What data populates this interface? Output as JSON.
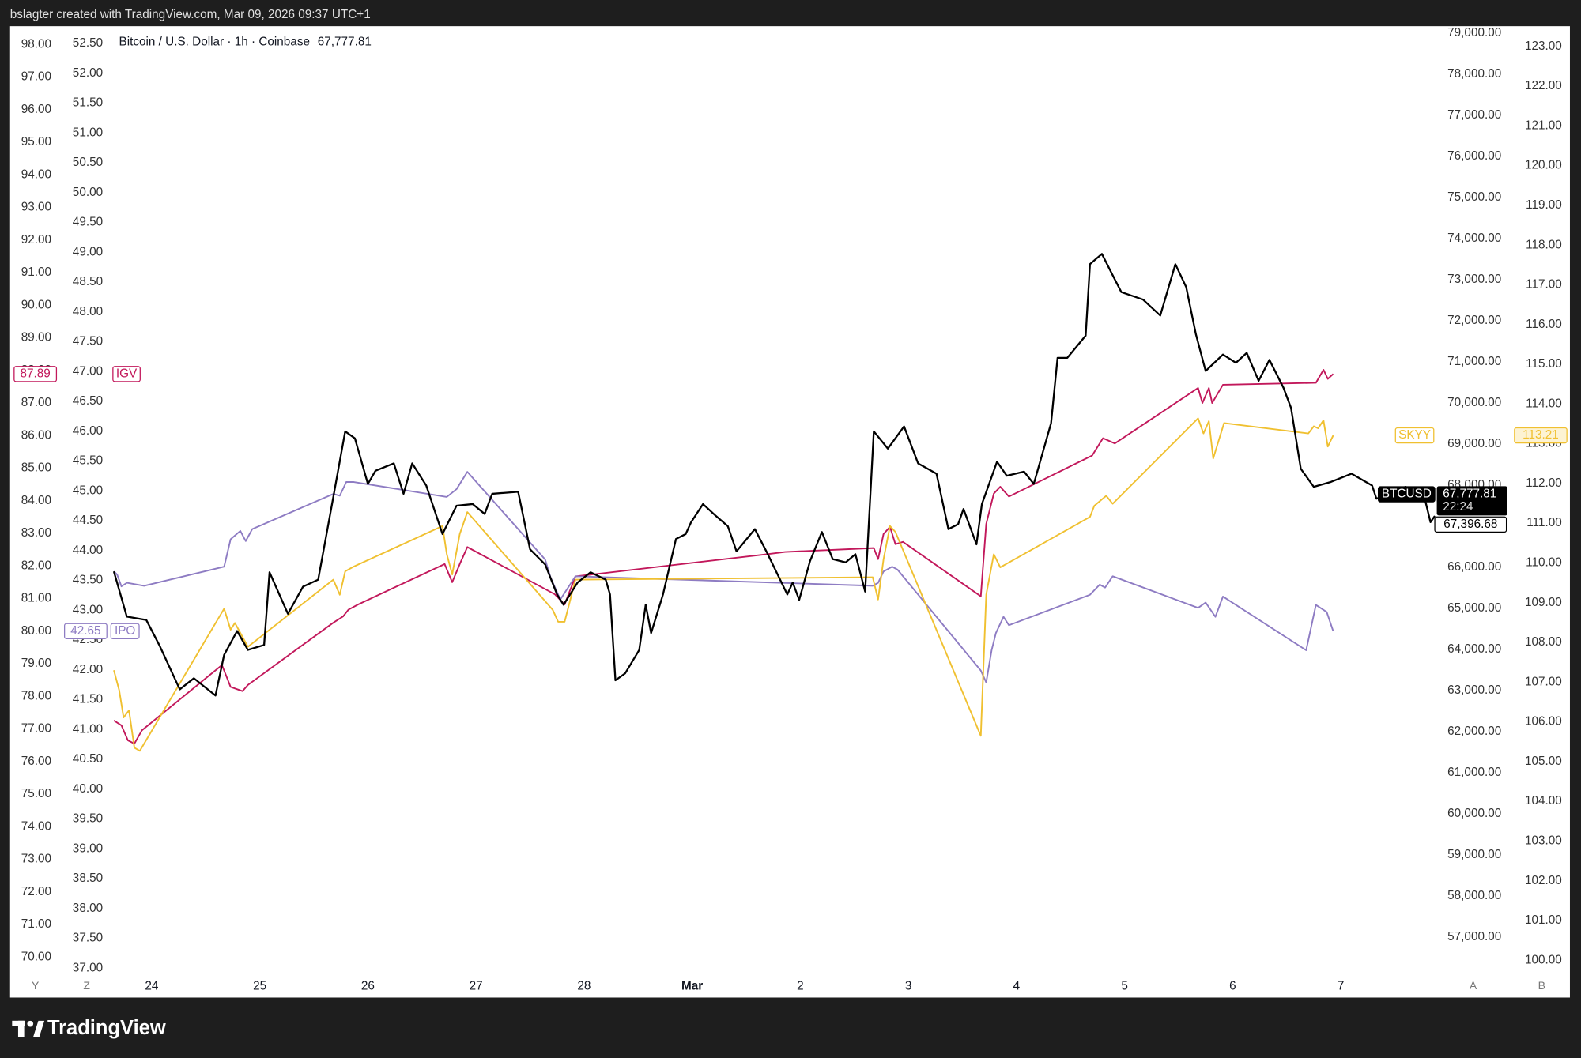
{
  "chart_data": {
    "type": "line",
    "header": "bslagter created with TradingView.com, Mar 09, 2026 09:37 UTC+1",
    "legend_title": "Bitcoin / U.S. Dollar · 1h · Coinbase",
    "legend_price": {
      "value": 67777.81,
      "label": "67,777.81"
    },
    "logo": "TradingView",
    "axis_letters": [
      "Y",
      "Z",
      "A",
      "B"
    ],
    "xlim": [
      -1.31,
      11.95
    ],
    "xticks": [
      {
        "value": 0,
        "label": "24"
      },
      {
        "value": 1,
        "label": "25"
      },
      {
        "value": 2,
        "label": "26"
      },
      {
        "value": 3,
        "label": "27"
      },
      {
        "value": 4,
        "label": "28"
      },
      {
        "value": 5,
        "label": "Mar"
      },
      {
        "value": 6,
        "label": "2"
      },
      {
        "value": 7,
        "label": "3"
      },
      {
        "value": 8,
        "label": "4"
      },
      {
        "value": 9,
        "label": "5"
      },
      {
        "value": 10,
        "label": "6"
      },
      {
        "value": 11,
        "label": "7"
      }
    ],
    "y_axes": [
      {
        "side": "left",
        "ylim": [
          69.44,
          98.56
        ],
        "yticks": [
          {
            "value": 70,
            "label": "70.00"
          },
          {
            "value": 71,
            "label": "71.00"
          },
          {
            "value": 72,
            "label": "72.00"
          },
          {
            "value": 73,
            "label": "73.00"
          },
          {
            "value": 74,
            "label": "74.00"
          },
          {
            "value": 75,
            "label": "75.00"
          },
          {
            "value": 76,
            "label": "76.00"
          },
          {
            "value": 77,
            "label": "77.00"
          },
          {
            "value": 78,
            "label": "78.00"
          },
          {
            "value": 79,
            "label": "79.00"
          },
          {
            "value": 80,
            "label": "80.00"
          },
          {
            "value": 81,
            "label": "81.00"
          },
          {
            "value": 82,
            "label": "82.00"
          },
          {
            "value": 83,
            "label": "83.00"
          },
          {
            "value": 84,
            "label": "84.00"
          },
          {
            "value": 85,
            "label": "85.00"
          },
          {
            "value": 86,
            "label": "86.00"
          },
          {
            "value": 87,
            "label": "87.00"
          },
          {
            "value": 88,
            "label": "88.00"
          },
          {
            "value": 89,
            "label": "89.00"
          },
          {
            "value": 90,
            "label": "90.00"
          },
          {
            "value": 91,
            "label": "91.00"
          },
          {
            "value": 92,
            "label": "92.00"
          },
          {
            "value": 93,
            "label": "93.00"
          },
          {
            "value": 94,
            "label": "94.00"
          },
          {
            "value": 95,
            "label": "95.00"
          },
          {
            "value": 96,
            "label": "96.00"
          },
          {
            "value": 97,
            "label": "97.00"
          },
          {
            "value": 98,
            "label": "98.00"
          }
        ]
      },
      {
        "side": "left",
        "ylim": [
          36.88,
          52.79
        ],
        "yticks": [
          {
            "value": 37,
            "label": "37.00"
          },
          {
            "value": 37.5,
            "label": "37.50"
          },
          {
            "value": 38,
            "label": "38.00"
          },
          {
            "value": 38.5,
            "label": "38.50"
          },
          {
            "value": 39,
            "label": "39.00"
          },
          {
            "value": 39.5,
            "label": "39.50"
          },
          {
            "value": 40,
            "label": "40.00"
          },
          {
            "value": 40.5,
            "label": "40.50"
          },
          {
            "value": 41,
            "label": "41.00"
          },
          {
            "value": 41.5,
            "label": "41.50"
          },
          {
            "value": 42,
            "label": "42.00"
          },
          {
            "value": 42.5,
            "label": "42.50"
          },
          {
            "value": 43,
            "label": "43.00"
          },
          {
            "value": 43.5,
            "label": "43.50"
          },
          {
            "value": 44,
            "label": "44.00"
          },
          {
            "value": 44.5,
            "label": "44.50"
          },
          {
            "value": 45,
            "label": "45.00"
          },
          {
            "value": 45.5,
            "label": "45.50"
          },
          {
            "value": 46,
            "label": "46.00"
          },
          {
            "value": 46.5,
            "label": "46.50"
          },
          {
            "value": 47,
            "label": "47.00"
          },
          {
            "value": 47.5,
            "label": "47.50"
          },
          {
            "value": 48,
            "label": "48.00"
          },
          {
            "value": 48.5,
            "label": "48.50"
          },
          {
            "value": 49,
            "label": "49.00"
          },
          {
            "value": 49.5,
            "label": "49.50"
          },
          {
            "value": 50,
            "label": "50.00"
          },
          {
            "value": 50.5,
            "label": "50.50"
          },
          {
            "value": 51,
            "label": "51.00"
          },
          {
            "value": 51.5,
            "label": "51.50"
          },
          {
            "value": 52,
            "label": "52.00"
          },
          {
            "value": 52.5,
            "label": "52.50"
          }
        ]
      },
      {
        "side": "right",
        "ylim": [
          56068,
          79172
        ],
        "yticks": [
          {
            "value": 57000,
            "label": "57,000.00"
          },
          {
            "value": 58000,
            "label": "58,000.00"
          },
          {
            "value": 59000,
            "label": "59,000.00"
          },
          {
            "value": 60000,
            "label": "60,000.00"
          },
          {
            "value": 61000,
            "label": "61,000.00"
          },
          {
            "value": 62000,
            "label": "62,000.00"
          },
          {
            "value": 63000,
            "label": "63,000.00"
          },
          {
            "value": 64000,
            "label": "64,000.00"
          },
          {
            "value": 65000,
            "label": "65,000.00"
          },
          {
            "value": 66000,
            "label": "66,000.00"
          },
          {
            "value": 67000,
            "label": "67,000.00"
          },
          {
            "value": 68000,
            "label": "68,000.00"
          },
          {
            "value": 69000,
            "label": "69,000.00"
          },
          {
            "value": 70000,
            "label": "70,000.00"
          },
          {
            "value": 71000,
            "label": "71,000.00"
          },
          {
            "value": 72000,
            "label": "72,000.00"
          },
          {
            "value": 73000,
            "label": "73,000.00"
          },
          {
            "value": 74000,
            "label": "74,000.00"
          },
          {
            "value": 75000,
            "label": "75,000.00"
          },
          {
            "value": 76000,
            "label": "76,000.00"
          },
          {
            "value": 77000,
            "label": "77,000.00"
          },
          {
            "value": 78000,
            "label": "78,000.00"
          },
          {
            "value": 79000,
            "label": "79,000.00"
          }
        ]
      },
      {
        "side": "right",
        "ylim": [
          99.62,
          123.51
        ],
        "yticks": [
          {
            "value": 100,
            "label": "100.00"
          },
          {
            "value": 101,
            "label": "101.00"
          },
          {
            "value": 102,
            "label": "102.00"
          },
          {
            "value": 103,
            "label": "103.00"
          },
          {
            "value": 104,
            "label": "104.00"
          },
          {
            "value": 105,
            "label": "105.00"
          },
          {
            "value": 106,
            "label": "106.00"
          },
          {
            "value": 107,
            "label": "107.00"
          },
          {
            "value": 108,
            "label": "108.00"
          },
          {
            "value": 109,
            "label": "109.00"
          },
          {
            "value": 110,
            "label": "110.00"
          },
          {
            "value": 111,
            "label": "111.00"
          },
          {
            "value": 112,
            "label": "112.00"
          },
          {
            "value": 113,
            "label": "113.00"
          },
          {
            "value": 114,
            "label": "114.00"
          },
          {
            "value": 115,
            "label": "115.00"
          },
          {
            "value": 116,
            "label": "116.00"
          },
          {
            "value": 117,
            "label": "117.00"
          },
          {
            "value": 118,
            "label": "118.00"
          },
          {
            "value": 119,
            "label": "119.00"
          },
          {
            "value": 120,
            "label": "120.00"
          },
          {
            "value": 121,
            "label": "121.00"
          },
          {
            "value": 122,
            "label": "122.00"
          },
          {
            "value": 123,
            "label": "123.00"
          }
        ]
      }
    ],
    "series": [
      {
        "name": "IGV",
        "color": "#c2185b",
        "axis": 0,
        "last_value": 87.89,
        "x": [
          -0.35,
          -0.28,
          -0.22,
          -0.16,
          -0.09,
          0.65,
          0.73,
          0.84,
          0.89,
          1.68,
          1.77,
          1.82,
          1.91,
          2.71,
          2.78,
          2.85,
          2.92,
          3.73,
          3.82,
          3.92,
          5.69,
          5.86,
          6.68,
          6.72,
          6.77,
          6.83,
          6.88,
          6.95,
          7.67,
          7.72,
          7.79,
          7.85,
          7.93,
          8.7,
          8.8,
          8.91,
          9.68,
          9.72,
          9.78,
          9.81,
          9.91,
          10.77,
          10.84,
          10.88,
          10.93
        ],
        "values": [
          77.26,
          77.11,
          76.65,
          76.55,
          76.96,
          78.96,
          78.29,
          78.16,
          78.35,
          80.26,
          80.45,
          80.66,
          80.82,
          82.06,
          81.5,
          82.06,
          82.58,
          81.13,
          80.82,
          81.68,
          82.36,
          82.43,
          82.55,
          82.21,
          82.98,
          83.2,
          82.67,
          82.74,
          81.07,
          83.29,
          84.22,
          84.43,
          84.13,
          85.39,
          85.92,
          85.76,
          87.46,
          87,
          87.46,
          87,
          87.56,
          87.62,
          88.02,
          87.74,
          87.89
        ]
      },
      {
        "name": "IPO",
        "color": "#8e7cc3",
        "axis": 1,
        "last_value": 42.65,
        "x": [
          -0.35,
          -0.32,
          -0.28,
          -0.23,
          -0.07,
          0.67,
          0.73,
          0.82,
          0.87,
          0.93,
          1.68,
          1.74,
          1.8,
          1.87,
          2.73,
          2.82,
          2.92,
          3.64,
          3.69,
          3.78,
          3.87,
          3.92,
          6.67,
          6.72,
          6.77,
          6.85,
          6.9,
          7.67,
          7.72,
          7.77,
          7.81,
          7.88,
          7.93,
          8.68,
          8.77,
          8.82,
          8.89,
          9.68,
          9.75,
          9.84,
          9.91,
          10.68,
          10.77,
          10.87,
          10.93
        ],
        "values": [
          43.65,
          43.6,
          43.4,
          43.46,
          43.41,
          43.73,
          44.19,
          44.33,
          44.16,
          44.36,
          44.95,
          44.92,
          45.15,
          45.15,
          44.9,
          45.03,
          45.32,
          43.85,
          43.55,
          43.18,
          43.43,
          43.57,
          43.41,
          43.46,
          43.65,
          43.73,
          43.68,
          41.99,
          41.79,
          42.33,
          42.62,
          42.89,
          42.75,
          43.26,
          43.43,
          43.38,
          43.57,
          43.04,
          43.13,
          42.89,
          43.23,
          42.33,
          43.09,
          42.97,
          42.65
        ]
      },
      {
        "name": "SKYY",
        "color": "#f0c030",
        "axis": 3,
        "last_value": 113.21,
        "x": [
          -0.35,
          -0.3,
          -0.26,
          -0.21,
          -0.16,
          -0.11,
          0.67,
          0.73,
          0.77,
          0.84,
          0.89,
          1.68,
          1.74,
          1.79,
          1.87,
          2.69,
          2.73,
          2.78,
          2.85,
          2.92,
          3.71,
          3.76,
          3.82,
          3.92,
          6.67,
          6.72,
          6.77,
          6.83,
          6.88,
          7.67,
          7.72,
          7.79,
          7.85,
          8.68,
          8.72,
          8.83,
          8.89,
          9.68,
          9.73,
          9.78,
          9.82,
          9.92,
          10.7,
          10.75,
          10.79,
          10.84,
          10.88,
          10.93
        ],
        "values": [
          107.3,
          106.79,
          106.11,
          106.29,
          105.35,
          105.27,
          108.85,
          108.32,
          108.49,
          108.14,
          107.89,
          109.58,
          109.2,
          109.79,
          109.91,
          110.93,
          110.22,
          109.71,
          110.73,
          111.28,
          108.82,
          108.52,
          108.52,
          109.58,
          109.64,
          109.08,
          110.09,
          110.93,
          110.78,
          105.65,
          109.2,
          110.22,
          109.89,
          111.16,
          111.44,
          111.69,
          111.49,
          113.64,
          113.26,
          113.57,
          112.63,
          113.52,
          113.26,
          113.44,
          113.39,
          113.59,
          112.93,
          113.21
        ]
      },
      {
        "name": "BTCUSD",
        "color": "#000000",
        "axis": 2,
        "last_value": {
          "value": 67777.81,
          "label": "67,777.81"
        },
        "countdown": "22:24",
        "secondary_price": {
          "value": 67396.68,
          "label": "67,396.68"
        },
        "x": [
          -0.35,
          -0.23,
          -0.05,
          0.07,
          0.26,
          0.39,
          0.59,
          0.67,
          0.79,
          0.89,
          1.04,
          1.09,
          1.26,
          1.4,
          1.54,
          1.66,
          1.79,
          1.88,
          2,
          2.07,
          2.24,
          2.33,
          2.41,
          2.54,
          2.69,
          2.82,
          2.97,
          3.08,
          3.15,
          3.39,
          3.5,
          3.64,
          3.75,
          3.81,
          3.94,
          4.06,
          4.2,
          4.24,
          4.29,
          4.38,
          4.51,
          4.57,
          4.62,
          4.73,
          4.85,
          4.94,
          4.99,
          5.1,
          5.22,
          5.33,
          5.41,
          5.58,
          5.69,
          5.88,
          5.93,
          5.99,
          6.09,
          6.2,
          6.3,
          6.42,
          6.51,
          6.6,
          6.68,
          6.81,
          6.96,
          7.09,
          7.26,
          7.37,
          7.46,
          7.51,
          7.63,
          7.68,
          7.82,
          7.91,
          8.07,
          8.16,
          8.32,
          8.38,
          8.47,
          8.64,
          8.68,
          8.79,
          8.89,
          8.97,
          9.17,
          9.33,
          9.47,
          9.57,
          9.66,
          9.75,
          9.91,
          10.03,
          10.13,
          10.24,
          10.34,
          10.47,
          10.54,
          10.63,
          10.75,
          10.91,
          11.1,
          11.29,
          11.33,
          11.6,
          11.78,
          11.83,
          11.87
        ],
        "values": [
          65900,
          64800,
          64720,
          64110,
          63030,
          63300,
          62880,
          63870,
          64450,
          63990,
          64110,
          65880,
          64870,
          65530,
          65700,
          67420,
          69310,
          69140,
          68030,
          68350,
          68530,
          67790,
          68530,
          67990,
          66810,
          67500,
          67540,
          67300,
          67790,
          67840,
          66440,
          66070,
          65340,
          65090,
          65630,
          65880,
          65700,
          65340,
          63250,
          63420,
          63990,
          65090,
          64400,
          65340,
          66690,
          66810,
          67100,
          67540,
          67250,
          67000,
          66390,
          66930,
          66370,
          65340,
          65630,
          65210,
          66150,
          66860,
          66200,
          66120,
          66320,
          65410,
          69310,
          68890,
          69430,
          68530,
          68280,
          66930,
          67050,
          67420,
          66560,
          67540,
          68570,
          68230,
          68330,
          68030,
          69510,
          71100,
          71100,
          71640,
          73380,
          73630,
          73110,
          72700,
          72520,
          72130,
          73380,
          72820,
          71670,
          70780,
          71180,
          70980,
          71220,
          70540,
          71050,
          70370,
          69880,
          68400,
          67960,
          68080,
          68280,
          67990,
          67670,
          67960,
          67640,
          67100,
          67250
        ]
      }
    ]
  }
}
